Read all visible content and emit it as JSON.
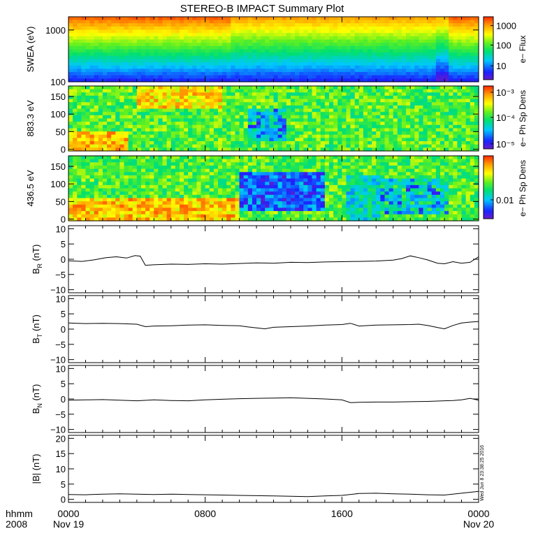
{
  "chart_data": {
    "type": "line",
    "title": "STEREO-B IMPACT Summary Plot",
    "x_ticks": [
      "0000",
      "0800",
      "1600",
      "0000"
    ],
    "x_dates": [
      "Nov 19",
      "",
      "",
      "Nov 20"
    ],
    "x_axis_prefix": [
      "hhmm",
      "2008"
    ],
    "x_range_hours": [
      0,
      24
    ],
    "timestamp": "Wed Jun 8 23:38:25 2016",
    "spectrograms": [
      {
        "ylabel": "SWEA (eV)",
        "scale": "log",
        "ylim": [
          100,
          1800
        ],
        "ytick_values": [
          100,
          1000
        ],
        "ytick_labels": [
          "100",
          "1000"
        ],
        "colorbar_label": "e− Flux",
        "colorbar_ticks": [
          "1000",
          "100",
          "10"
        ],
        "colorbar_tick_fractions": [
          0.86,
          0.55,
          0.22
        ],
        "colors": [
          "#6a1acb",
          "#1a22ff",
          "#00c8ff",
          "#00e070",
          "#60f020",
          "#ffff00",
          "#ffa000",
          "#ff2800"
        ]
      },
      {
        "ylabel": "883.3 eV",
        "scale": "linear",
        "ylim": [
          -5,
          180
        ],
        "ytick_values": [
          0,
          50,
          100,
          150
        ],
        "ytick_labels": [
          "0",
          "50",
          "100",
          "150"
        ],
        "colorbar_label": "e− Ph Sp Dens",
        "colorbar_ticks": [
          "10⁻³",
          "10⁻⁴",
          "10⁻⁵"
        ],
        "colorbar_tick_fractions": [
          0.9,
          0.5,
          0.08
        ]
      },
      {
        "ylabel": "436.5 eV",
        "scale": "linear",
        "ylim": [
          -5,
          180
        ],
        "ytick_values": [
          0,
          50,
          100,
          150
        ],
        "ytick_labels": [
          "0",
          "50",
          "100",
          "150"
        ],
        "colorbar_label": "e− Ph Sp Dens",
        "colorbar_ticks": [
          "0.01"
        ],
        "colorbar_tick_fractions": [
          0.3
        ]
      }
    ],
    "series": [
      {
        "ylabel": "B_R (nT)",
        "label_main": "B",
        "label_sub": "R",
        "label_unit": " (nT)",
        "ylim": [
          -11,
          11
        ],
        "ytick_values": [
          -10,
          -5,
          0,
          5,
          10
        ],
        "ytick_labels": [
          "−10",
          "−5",
          "0",
          "5",
          "10"
        ],
        "x": [
          0,
          0.8,
          1.5,
          2.2,
          2.8,
          3.4,
          3.9,
          4.2,
          4.5,
          5,
          6,
          7,
          8,
          9,
          10,
          11,
          12,
          13,
          14,
          15,
          16,
          17,
          18,
          19,
          19.5,
          20,
          20.5,
          21,
          21.6,
          22,
          22.5,
          23,
          23.5,
          24
        ],
        "y": [
          -0.5,
          -0.7,
          -0.2,
          0.5,
          0.8,
          0.4,
          1.2,
          1.0,
          -2.0,
          -1.8,
          -1.6,
          -1.7,
          -1.5,
          -1.6,
          -1.4,
          -1.2,
          -1.3,
          -1.0,
          -1.1,
          -0.9,
          -0.8,
          -0.7,
          -0.6,
          -0.3,
          0.2,
          1.1,
          0.5,
          -0.2,
          -1.3,
          -1.5,
          -0.8,
          -1.3,
          -1.0,
          0.8
        ]
      },
      {
        "ylabel": "B_T (nT)",
        "label_main": "B",
        "label_sub": "T",
        "label_unit": " (nT)",
        "ylim": [
          -11,
          11
        ],
        "ytick_values": [
          -10,
          -5,
          0,
          5,
          10
        ],
        "ytick_labels": [
          "−10",
          "−5",
          "0",
          "5",
          "10"
        ],
        "x": [
          0,
          1,
          2,
          3,
          4,
          4.5,
          5,
          6,
          7,
          8,
          9,
          10,
          10.5,
          11,
          11.5,
          12,
          13,
          14,
          15,
          16,
          16.5,
          17,
          18,
          19,
          20,
          20.5,
          21,
          21.6,
          22,
          22.5,
          23,
          23.5,
          24
        ],
        "y": [
          2.0,
          1.8,
          1.9,
          1.8,
          1.6,
          0.8,
          1.0,
          1.1,
          1.3,
          1.4,
          1.2,
          1.1,
          0.7,
          0.4,
          0.1,
          0.6,
          0.8,
          1.0,
          1.3,
          1.5,
          1.9,
          1.0,
          1.3,
          1.4,
          1.5,
          1.6,
          1.2,
          0.5,
          0.1,
          1.2,
          2.0,
          2.3,
          2.5
        ]
      },
      {
        "ylabel": "B_N (nT)",
        "label_main": "B",
        "label_sub": "N",
        "label_unit": " (nT)",
        "ylim": [
          -11,
          11
        ],
        "ytick_values": [
          -10,
          -5,
          0,
          5,
          10
        ],
        "ytick_labels": [
          "−10",
          "−5",
          "0",
          "5",
          "10"
        ],
        "x": [
          0,
          1,
          2,
          3,
          4,
          5,
          6,
          7,
          8,
          9,
          10,
          11,
          12,
          13,
          14,
          15,
          16,
          16.5,
          17,
          18,
          19,
          20,
          21,
          22,
          22.5,
          23,
          23.5,
          24
        ],
        "y": [
          -0.4,
          -0.3,
          -0.2,
          -0.4,
          -0.6,
          -0.3,
          -0.5,
          -0.6,
          -0.3,
          -0.1,
          0.1,
          0.2,
          0.3,
          0.4,
          0.2,
          0.0,
          -0.3,
          -1.2,
          -1.1,
          -1.0,
          -1.0,
          -0.9,
          -0.8,
          -0.6,
          -0.5,
          -0.3,
          0.2,
          -0.4
        ]
      },
      {
        "ylabel": "|B| (nT)",
        "label_main": "|B|",
        "label_sub": "",
        "label_unit": " (nT)",
        "ylim": [
          -1,
          21
        ],
        "ytick_values": [
          0,
          5,
          10,
          15,
          20
        ],
        "ytick_labels": [
          "0",
          "5",
          "10",
          "15",
          "20"
        ],
        "x": [
          0,
          1,
          2,
          3,
          4,
          5,
          6,
          7,
          8,
          9,
          10,
          11,
          12,
          13,
          14,
          15,
          16,
          17,
          18,
          19,
          20,
          21,
          22,
          23,
          24
        ],
        "y": [
          1.6,
          1.5,
          1.7,
          1.8,
          1.7,
          1.6,
          1.7,
          1.6,
          1.5,
          1.4,
          1.3,
          1.2,
          1.1,
          1.0,
          0.9,
          1.1,
          1.3,
          1.9,
          2.0,
          1.8,
          1.7,
          1.5,
          1.4,
          2.0,
          2.6
        ]
      }
    ]
  }
}
